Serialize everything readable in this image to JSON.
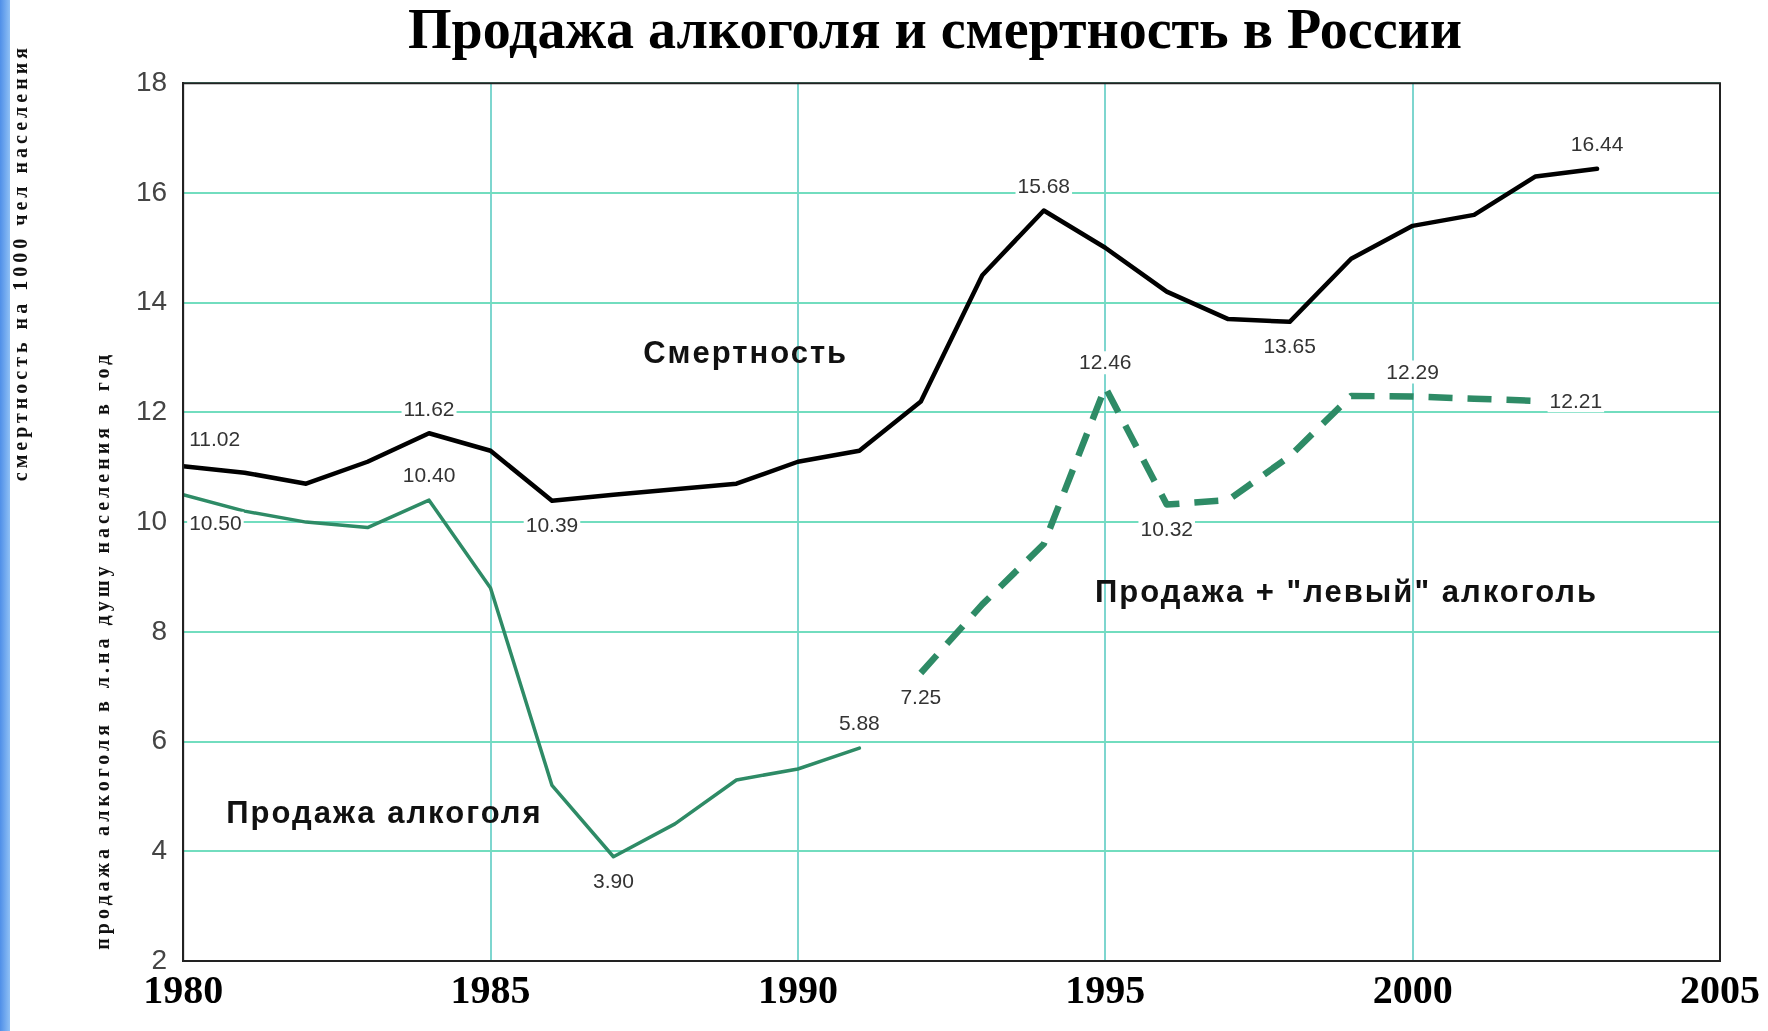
{
  "chart_data": {
    "type": "line",
    "title": "Продажа алкоголя и смертность в России",
    "ylabel": "смертность на 1000 чел населения\nпродажа алкоголя в л.на душу населения в год",
    "xlim": [
      1980,
      2005
    ],
    "xticks": [
      1980,
      1985,
      1990,
      1995,
      2000,
      2005
    ],
    "ylim": [
      2,
      18
    ],
    "yticks": [
      2,
      4,
      6,
      8,
      10,
      12,
      14,
      16,
      18
    ],
    "grid": true,
    "marker": "none",
    "line_style": "solid",
    "series": [
      {
        "name": "Смертность",
        "color": "#000000",
        "x": [
          1980,
          1981,
          1982,
          1983,
          1984,
          1985,
          1986,
          1987,
          1988,
          1989,
          1990,
          1991,
          1992,
          1993,
          1994,
          1995,
          1996,
          1997,
          1998,
          1999,
          2000,
          2001,
          2002,
          2003
        ],
        "values": [
          11.02,
          10.9,
          10.7,
          11.1,
          11.62,
          11.3,
          10.39,
          10.5,
          10.6,
          10.7,
          11.1,
          11.3,
          12.2,
          14.5,
          15.68,
          15.0,
          14.2,
          13.7,
          13.65,
          14.8,
          15.4,
          15.6,
          16.3,
          16.44
        ],
        "value_labels": [
          "11.02",
          null,
          null,
          null,
          "11.62",
          null,
          "10.39",
          null,
          null,
          null,
          null,
          null,
          null,
          null,
          "15.68",
          null,
          null,
          null,
          "13.65",
          null,
          null,
          null,
          null,
          "16.44"
        ]
      },
      {
        "name": "Продажа алкоголя",
        "color": "#2e8b66",
        "x": [
          1980,
          1981,
          1982,
          1983,
          1984,
          1985,
          1986,
          1987,
          1988,
          1989,
          1990,
          1991
        ],
        "values": [
          10.5,
          10.2,
          10.0,
          9.9,
          10.4,
          8.8,
          5.2,
          3.9,
          4.5,
          5.3,
          5.5,
          5.88
        ],
        "value_labels": [
          "10.50",
          null,
          null,
          null,
          "10.40",
          null,
          null,
          "3.90",
          null,
          null,
          null,
          "5.88"
        ]
      },
      {
        "name": "Продажа + \"левый\" алкоголь",
        "color": "#2e8b66",
        "line_style": "dashed",
        "x": [
          1992,
          1993,
          1994,
          1995,
          1996,
          1997,
          1998,
          1999,
          2000,
          2001,
          2002
        ],
        "values": [
          7.25,
          8.5,
          9.6,
          12.46,
          10.32,
          10.4,
          11.2,
          12.3,
          12.29,
          12.25,
          12.21
        ],
        "value_labels": [
          "7.25",
          null,
          null,
          "12.46",
          "10.32",
          null,
          null,
          null,
          "12.29",
          null,
          "12.21"
        ]
      }
    ]
  }
}
